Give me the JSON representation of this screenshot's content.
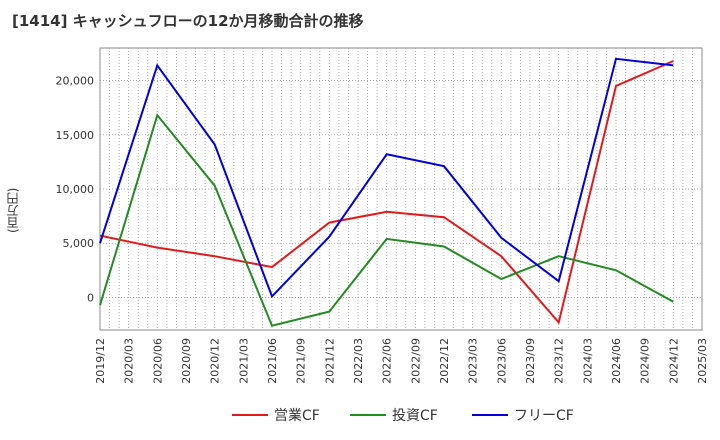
{
  "chart_data": {
    "type": "line",
    "title": "[1414]  キャッシュフローの12か月移動合計の推移",
    "ylabel": "(百万円)",
    "xlabel": "",
    "ylim": [
      -3000,
      23000
    ],
    "yticks": [
      0,
      5000,
      10000,
      15000,
      20000
    ],
    "ytick_labels": [
      "0",
      "5,000",
      "10,000",
      "15,000",
      "20,000"
    ],
    "x_ticks": [
      "2019/12",
      "2020/03",
      "2020/06",
      "2020/09",
      "2020/12",
      "2021/03",
      "2021/06",
      "2021/09",
      "2021/12",
      "2022/03",
      "2022/06",
      "2022/09",
      "2022/12",
      "2023/03",
      "2023/06",
      "2023/09",
      "2023/12",
      "2024/03",
      "2024/06",
      "2024/09",
      "2024/12",
      "2025/03"
    ],
    "x": [
      "2019/12",
      "2020/06",
      "2020/12",
      "2021/06",
      "2021/12",
      "2022/06",
      "2022/12",
      "2023/06",
      "2023/12",
      "2024/06",
      "2024/12"
    ],
    "series": [
      {
        "name": "営業CF",
        "color": "#e31a1c",
        "values": [
          5700,
          4600,
          3800,
          2800,
          6900,
          7900,
          7400,
          3800,
          -2300,
          19500,
          21800
        ]
      },
      {
        "name": "投資CF",
        "color": "#228b22",
        "values": [
          -700,
          16800,
          10300,
          -2600,
          -1300,
          5400,
          4700,
          1700,
          3800,
          2500,
          -400
        ]
      },
      {
        "name": "フリーCF",
        "color": "#0000dd",
        "values": [
          5000,
          21400,
          14100,
          100,
          5600,
          13200,
          12100,
          5500,
          1500,
          22000,
          21400
        ]
      }
    ],
    "legend_position": "bottom",
    "grid": true
  }
}
